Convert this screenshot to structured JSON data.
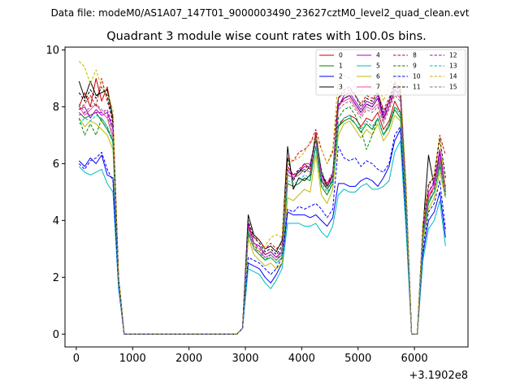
{
  "suptitle": "Data file: modeM0/AS1A07_147T01_9000003490_23627cztM0_level2_quad_clean.evt",
  "chart_data": {
    "type": "line",
    "title": "Quadrant 3 module wise count rates with 100.0s bins.",
    "xlabel": "",
    "ylabel": "",
    "x_offset_label": "+3.1902e8",
    "xlim": [
      -200,
      6950
    ],
    "ylim": [
      -0.45,
      10.1
    ],
    "xticks": [
      0,
      1000,
      2000,
      3000,
      4000,
      5000,
      6000
    ],
    "xtick_labels": [
      "0",
      "1000",
      "2000",
      "3000",
      "4000",
      "5000",
      "6000"
    ],
    "yticks": [
      0,
      2,
      4,
      6,
      8,
      10
    ],
    "ytick_labels": [
      "0",
      "2",
      "4",
      "6",
      "8",
      "10"
    ],
    "grid": false,
    "legend_position": "top-right",
    "x": [
      50,
      150,
      250,
      350,
      450,
      550,
      650,
      750,
      850,
      950,
      1050,
      1150,
      1250,
      1350,
      1450,
      1550,
      1650,
      1750,
      1850,
      1950,
      2050,
      2150,
      2250,
      2350,
      2450,
      2550,
      2650,
      2750,
      2850,
      2950,
      3050,
      3150,
      3250,
      3350,
      3450,
      3550,
      3650,
      3750,
      3850,
      3950,
      4050,
      4150,
      4250,
      4350,
      4450,
      4550,
      4650,
      4750,
      4850,
      4950,
      5050,
      5150,
      5250,
      5350,
      5450,
      5550,
      5650,
      5750,
      5850,
      5950,
      6050,
      6150,
      6250,
      6350,
      6450,
      6550
    ],
    "series": [
      {
        "name": "0",
        "color": "#cc0000",
        "dash": false,
        "values": [
          8.0,
          8.5,
          8.0,
          9.0,
          8.2,
          8.7,
          7.6,
          2.0,
          0,
          0,
          0,
          0,
          0,
          0,
          0,
          0,
          0,
          0,
          0,
          0,
          0,
          0,
          0,
          0,
          0,
          0,
          0,
          0,
          0,
          0.2,
          3.9,
          3.2,
          3.1,
          2.8,
          2.9,
          2.7,
          2.9,
          5.9,
          5.6,
          5.7,
          6.0,
          5.8,
          7.1,
          5.6,
          5.3,
          5.6,
          7.3,
          7.6,
          7.7,
          7.6,
          7.3,
          7.6,
          7.5,
          7.8,
          7.2,
          7.5,
          8.2,
          7.8,
          4.7,
          0,
          0,
          3.5,
          4.8,
          5.2,
          6.1,
          5.2
        ]
      },
      {
        "name": "1",
        "color": "#008000",
        "dash": false,
        "values": [
          7.8,
          7.6,
          7.7,
          7.8,
          7.5,
          7.2,
          6.8,
          1.9,
          0,
          0,
          0,
          0,
          0,
          0,
          0,
          0,
          0,
          0,
          0,
          0,
          0,
          0,
          0,
          0,
          0,
          0,
          0,
          0,
          0,
          0.2,
          3.6,
          3.0,
          2.8,
          2.6,
          2.7,
          2.5,
          2.7,
          5.3,
          5.2,
          5.3,
          5.5,
          5.4,
          6.6,
          5.2,
          4.9,
          5.3,
          7.3,
          7.5,
          7.6,
          7.4,
          7.1,
          7.4,
          7.2,
          7.6,
          7.0,
          7.3,
          7.9,
          7.6,
          4.5,
          0,
          0,
          3.4,
          4.6,
          5.0,
          5.9,
          5.0
        ]
      },
      {
        "name": "2",
        "color": "#0000ff",
        "dash": false,
        "values": [
          6.1,
          5.9,
          6.2,
          6.0,
          6.3,
          5.6,
          5.5,
          1.7,
          0,
          0,
          0,
          0,
          0,
          0,
          0,
          0,
          0,
          0,
          0,
          0,
          0,
          0,
          0,
          0,
          0,
          0,
          0,
          0,
          0,
          0.2,
          2.5,
          2.4,
          2.3,
          2.0,
          1.8,
          2.1,
          2.5,
          4.3,
          4.2,
          4.2,
          4.2,
          4.1,
          4.2,
          4.0,
          3.8,
          4.1,
          5.3,
          5.3,
          5.2,
          5.2,
          5.4,
          5.5,
          5.4,
          5.2,
          5.5,
          5.9,
          6.8,
          7.2,
          4.0,
          0,
          0,
          2.8,
          4.0,
          4.3,
          5.0,
          3.4
        ]
      },
      {
        "name": "3",
        "color": "#000000",
        "dash": false,
        "values": [
          8.9,
          8.3,
          8.9,
          8.4,
          8.5,
          8.6,
          7.6,
          2.0,
          0,
          0,
          0,
          0,
          0,
          0,
          0,
          0,
          0,
          0,
          0,
          0,
          0,
          0,
          0,
          0,
          0,
          0,
          0,
          0,
          0,
          0.2,
          4.2,
          3.5,
          3.3,
          3.0,
          3.1,
          2.9,
          3.3,
          6.6,
          5.1,
          5.5,
          5.4,
          5.6,
          6.9,
          5.4,
          5.1,
          5.4,
          8.0,
          8.3,
          8.4,
          8.1,
          7.8,
          8.1,
          8.0,
          8.3,
          7.6,
          8.0,
          8.6,
          8.4,
          5.0,
          0,
          0,
          3.7,
          6.3,
          5.2,
          6.4,
          5.1
        ]
      },
      {
        "name": "4",
        "color": "#aa00cc",
        "dash": false,
        "values": [
          7.9,
          8.0,
          7.6,
          7.9,
          7.7,
          7.8,
          7.2,
          2.0,
          0,
          0,
          0,
          0,
          0,
          0,
          0,
          0,
          0,
          0,
          0,
          0,
          0,
          0,
          0,
          0,
          0,
          0,
          0,
          0,
          0,
          0.2,
          3.9,
          3.2,
          3.1,
          2.8,
          2.9,
          2.7,
          2.9,
          5.8,
          5.5,
          5.7,
          5.9,
          5.9,
          6.9,
          5.6,
          5.2,
          5.6,
          8.0,
          8.4,
          8.5,
          8.2,
          7.9,
          8.2,
          8.1,
          8.4,
          7.7,
          8.2,
          8.7,
          8.6,
          4.9,
          0,
          0,
          3.6,
          5.0,
          5.3,
          6.5,
          5.1
        ]
      },
      {
        "name": "5",
        "color": "#00bbbb",
        "dash": false,
        "values": [
          5.9,
          5.7,
          5.6,
          5.7,
          5.8,
          5.3,
          5.0,
          1.6,
          0,
          0,
          0,
          0,
          0,
          0,
          0,
          0,
          0,
          0,
          0,
          0,
          0,
          0,
          0,
          0,
          0,
          0,
          0,
          0,
          0,
          0.2,
          2.3,
          2.2,
          2.1,
          1.8,
          1.6,
          1.9,
          2.3,
          3.9,
          3.9,
          3.9,
          3.8,
          3.8,
          3.9,
          3.6,
          3.4,
          3.8,
          4.9,
          5.1,
          5.0,
          5.0,
          5.2,
          5.3,
          5.1,
          5.1,
          5.2,
          5.4,
          6.4,
          6.8,
          3.7,
          0,
          0,
          2.6,
          3.7,
          4.0,
          4.7,
          3.1
        ]
      },
      {
        "name": "6",
        "color": "#bbbb00",
        "dash": false,
        "values": [
          7.6,
          7.3,
          7.5,
          7.4,
          7.2,
          7.0,
          6.5,
          1.8,
          0,
          0,
          0,
          0,
          0,
          0,
          0,
          0,
          0,
          0,
          0,
          0,
          0,
          0,
          0,
          0,
          0,
          0,
          0,
          0,
          0,
          0.2,
          3.4,
          2.8,
          2.6,
          2.4,
          2.5,
          2.3,
          2.5,
          4.8,
          4.7,
          4.9,
          5.1,
          5.0,
          6.3,
          4.9,
          4.6,
          5.1,
          7.0,
          7.4,
          7.5,
          7.2,
          6.9,
          7.2,
          7.0,
          7.4,
          6.8,
          7.1,
          7.7,
          7.5,
          4.3,
          0,
          0,
          3.2,
          4.4,
          4.8,
          5.7,
          4.8
        ]
      },
      {
        "name": "7",
        "color": "#ff44aa",
        "dash": false,
        "values": [
          8.0,
          7.7,
          7.9,
          8.1,
          7.8,
          7.6,
          6.9,
          1.9,
          0,
          0,
          0,
          0,
          0,
          0,
          0,
          0,
          0,
          0,
          0,
          0,
          0,
          0,
          0,
          0,
          0,
          0,
          0,
          0,
          0,
          0.2,
          3.7,
          3.0,
          2.9,
          2.7,
          2.8,
          2.6,
          2.8,
          5.6,
          5.5,
          5.6,
          5.8,
          5.7,
          7.0,
          5.5,
          5.2,
          5.5,
          8.1,
          8.2,
          8.3,
          8.0,
          7.7,
          8.0,
          7.9,
          8.1,
          7.5,
          8.0,
          8.5,
          8.3,
          4.8,
          0,
          0,
          3.5,
          4.9,
          5.2,
          6.2,
          5.0
        ]
      },
      {
        "name": "8",
        "color": "#cc0000",
        "dash": true,
        "values": [
          7.9,
          8.1,
          8.4,
          8.0,
          9.0,
          8.2,
          7.5,
          2.0,
          0,
          0,
          0,
          0,
          0,
          0,
          0,
          0,
          0,
          0,
          0,
          0,
          0,
          0,
          0,
          0,
          0,
          0,
          0,
          0,
          0,
          0.2,
          3.8,
          3.4,
          3.3,
          3.0,
          3.2,
          3.0,
          3.2,
          6.2,
          6.1,
          6.4,
          6.5,
          6.7,
          7.2,
          6.5,
          6.0,
          6.4,
          8.3,
          8.5,
          8.6,
          8.4,
          8.1,
          8.4,
          8.3,
          8.5,
          7.9,
          8.3,
          8.9,
          8.6,
          5.2,
          0,
          0,
          3.9,
          5.2,
          5.6,
          7.0,
          6.3
        ]
      },
      {
        "name": "9",
        "color": "#008000",
        "dash": true,
        "values": [
          7.6,
          7.0,
          7.4,
          7.0,
          7.6,
          7.3,
          6.8,
          1.9,
          0,
          0,
          0,
          0,
          0,
          0,
          0,
          0,
          0,
          0,
          0,
          0,
          0,
          0,
          0,
          0,
          0,
          0,
          0,
          0,
          0,
          0.2,
          3.5,
          3.1,
          2.9,
          2.6,
          2.8,
          2.6,
          2.8,
          5.6,
          5.5,
          5.7,
          5.8,
          6.0,
          6.9,
          5.8,
          5.1,
          5.4,
          7.6,
          7.9,
          8.0,
          7.7,
          7.2,
          6.5,
          7.0,
          7.6,
          7.0,
          7.4,
          8.0,
          7.8,
          4.6,
          0,
          0,
          3.5,
          4.7,
          5.0,
          6.0,
          4.8
        ]
      },
      {
        "name": "10",
        "color": "#0000ff",
        "dash": true,
        "values": [
          6.0,
          5.8,
          6.1,
          6.2,
          6.4,
          5.8,
          5.4,
          1.7,
          0,
          0,
          0,
          0,
          0,
          0,
          0,
          0,
          0,
          0,
          0,
          0,
          0,
          0,
          0,
          0,
          0,
          0,
          0,
          0,
          0,
          0.2,
          2.7,
          2.6,
          2.5,
          2.3,
          2.1,
          2.3,
          2.7,
          4.4,
          4.3,
          4.5,
          4.4,
          4.5,
          4.6,
          4.4,
          4.1,
          4.4,
          6.6,
          6.2,
          6.1,
          6.2,
          5.9,
          6.1,
          6.0,
          5.8,
          5.7,
          6.0,
          7.0,
          7.3,
          4.2,
          0,
          0,
          3.0,
          4.3,
          4.6,
          5.4,
          3.7
        ]
      },
      {
        "name": "11",
        "color": "#000000",
        "dash": true,
        "values": [
          8.5,
          8.2,
          8.6,
          8.3,
          8.7,
          8.4,
          7.4,
          2.0,
          0,
          0,
          0,
          0,
          0,
          0,
          0,
          0,
          0,
          0,
          0,
          0,
          0,
          0,
          0,
          0,
          0,
          0,
          0,
          0,
          0,
          0.2,
          4.0,
          3.4,
          3.2,
          2.9,
          3.0,
          2.8,
          3.1,
          6.2,
          5.4,
          5.8,
          5.7,
          5.9,
          7.0,
          5.7,
          5.2,
          5.6,
          8.3,
          8.6,
          8.7,
          8.4,
          8.0,
          8.3,
          8.2,
          8.5,
          7.8,
          8.2,
          8.8,
          8.5,
          5.1,
          0,
          0,
          3.8,
          5.3,
          5.5,
          6.9,
          5.5
        ]
      },
      {
        "name": "12",
        "color": "#aa00cc",
        "dash": true,
        "values": [
          7.7,
          7.8,
          7.7,
          7.8,
          7.8,
          7.9,
          7.3,
          2.0,
          0,
          0,
          0,
          0,
          0,
          0,
          0,
          0,
          0,
          0,
          0,
          0,
          0,
          0,
          0,
          0,
          0,
          0,
          0,
          0,
          0,
          0.2,
          3.8,
          3.2,
          3.0,
          2.8,
          2.9,
          2.7,
          3.0,
          5.7,
          5.6,
          5.8,
          6.0,
          6.0,
          6.8,
          5.7,
          5.3,
          5.7,
          8.1,
          8.3,
          8.4,
          8.1,
          7.8,
          8.1,
          8.0,
          8.3,
          7.6,
          8.1,
          8.6,
          8.5,
          4.9,
          0,
          0,
          3.6,
          5.0,
          5.4,
          6.4,
          5.0
        ]
      },
      {
        "name": "13",
        "color": "#00bbbb",
        "dash": true,
        "values": [
          7.4,
          7.6,
          7.5,
          7.7,
          7.6,
          7.3,
          6.7,
          1.8,
          0,
          0,
          0,
          0,
          0,
          0,
          0,
          0,
          0,
          0,
          0,
          0,
          0,
          0,
          0,
          0,
          0,
          0,
          0,
          0,
          0,
          0.2,
          3.6,
          3.0,
          2.9,
          2.6,
          2.7,
          2.5,
          2.7,
          5.4,
          5.3,
          5.4,
          5.6,
          5.5,
          6.6,
          5.3,
          5.0,
          5.3,
          7.4,
          7.6,
          7.7,
          7.4,
          7.2,
          7.5,
          7.3,
          7.6,
          7.0,
          7.4,
          8.0,
          7.7,
          4.6,
          0,
          0,
          3.4,
          4.7,
          5.0,
          6.0,
          4.9
        ]
      },
      {
        "name": "14",
        "color": "#bbbb00",
        "dash": true,
        "values": [
          9.6,
          9.4,
          8.8,
          9.3,
          8.7,
          8.5,
          7.9,
          2.1,
          0,
          0,
          0,
          0,
          0,
          0,
          0,
          0,
          0,
          0,
          0,
          0,
          0,
          0,
          0,
          0,
          0,
          0,
          0,
          0,
          0,
          0.2,
          3.3,
          3.1,
          2.9,
          3.1,
          3.4,
          3.5,
          3.4,
          6.0,
          6.1,
          6.2,
          6.4,
          6.8,
          6.9,
          6.5,
          6.0,
          6.5,
          9.0,
          9.1,
          9.0,
          8.8,
          8.5,
          8.8,
          8.6,
          8.9,
          8.2,
          8.7,
          9.2,
          8.9,
          5.3,
          0,
          0,
          3.9,
          5.2,
          5.6,
          6.9,
          5.1
        ]
      },
      {
        "name": "15",
        "color": "#777777",
        "dash": true,
        "values": [
          8.1,
          7.8,
          8.0,
          8.1,
          7.9,
          7.7,
          7.0,
          1.9,
          0,
          0,
          0,
          0,
          0,
          0,
          0,
          0,
          0,
          0,
          0,
          0,
          0,
          0,
          0,
          0,
          0,
          0,
          0,
          0,
          0,
          0.2,
          3.7,
          3.1,
          3.0,
          2.7,
          2.8,
          2.6,
          2.9,
          5.6,
          5.5,
          5.6,
          5.8,
          5.7,
          6.9,
          5.5,
          5.1,
          5.5,
          7.9,
          8.1,
          8.2,
          7.9,
          7.6,
          7.9,
          7.8,
          8.0,
          7.4,
          7.9,
          8.4,
          8.2,
          4.8,
          0,
          0,
          3.5,
          4.8,
          5.1,
          6.1,
          4.9
        ]
      }
    ]
  }
}
